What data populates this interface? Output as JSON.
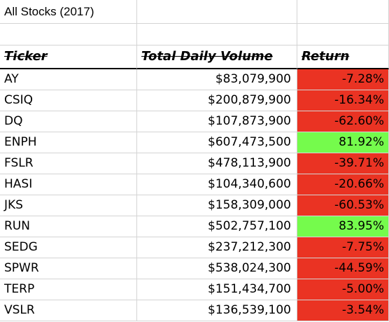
{
  "title": "All Stocks (2017)",
  "headers": {
    "ticker": "Ticker",
    "volume": "Total Daily Volume",
    "return": "Return"
  },
  "colors": {
    "negative": "#ea3323",
    "positive": "#75fb4c",
    "gridline": "#d4d4d4"
  },
  "rows": [
    {
      "ticker": "AY",
      "volume": "$83,079,900",
      "return": "-7.28%",
      "status": "negative"
    },
    {
      "ticker": "CSIQ",
      "volume": "$200,879,900",
      "return": "-16.34%",
      "status": "negative"
    },
    {
      "ticker": "DQ",
      "volume": "$107,873,900",
      "return": "-62.60%",
      "status": "negative"
    },
    {
      "ticker": "ENPH",
      "volume": "$607,473,500",
      "return": "81.92%",
      "status": "positive"
    },
    {
      "ticker": "FSLR",
      "volume": "$478,113,900",
      "return": "-39.71%",
      "status": "negative"
    },
    {
      "ticker": "HASI",
      "volume": "$104,340,600",
      "return": "-20.66%",
      "status": "negative"
    },
    {
      "ticker": "JKS",
      "volume": "$158,309,000",
      "return": "-60.53%",
      "status": "negative"
    },
    {
      "ticker": "RUN",
      "volume": "$502,757,100",
      "return": "83.95%",
      "status": "positive"
    },
    {
      "ticker": "SEDG",
      "volume": "$237,212,300",
      "return": "-7.75%",
      "status": "negative"
    },
    {
      "ticker": "SPWR",
      "volume": "$538,024,300",
      "return": "-44.59%",
      "status": "negative"
    },
    {
      "ticker": "TERP",
      "volume": "$151,434,700",
      "return": "-5.00%",
      "status": "negative"
    },
    {
      "ticker": "VSLR",
      "volume": "$136,539,100",
      "return": "-3.54%",
      "status": "negative"
    }
  ]
}
